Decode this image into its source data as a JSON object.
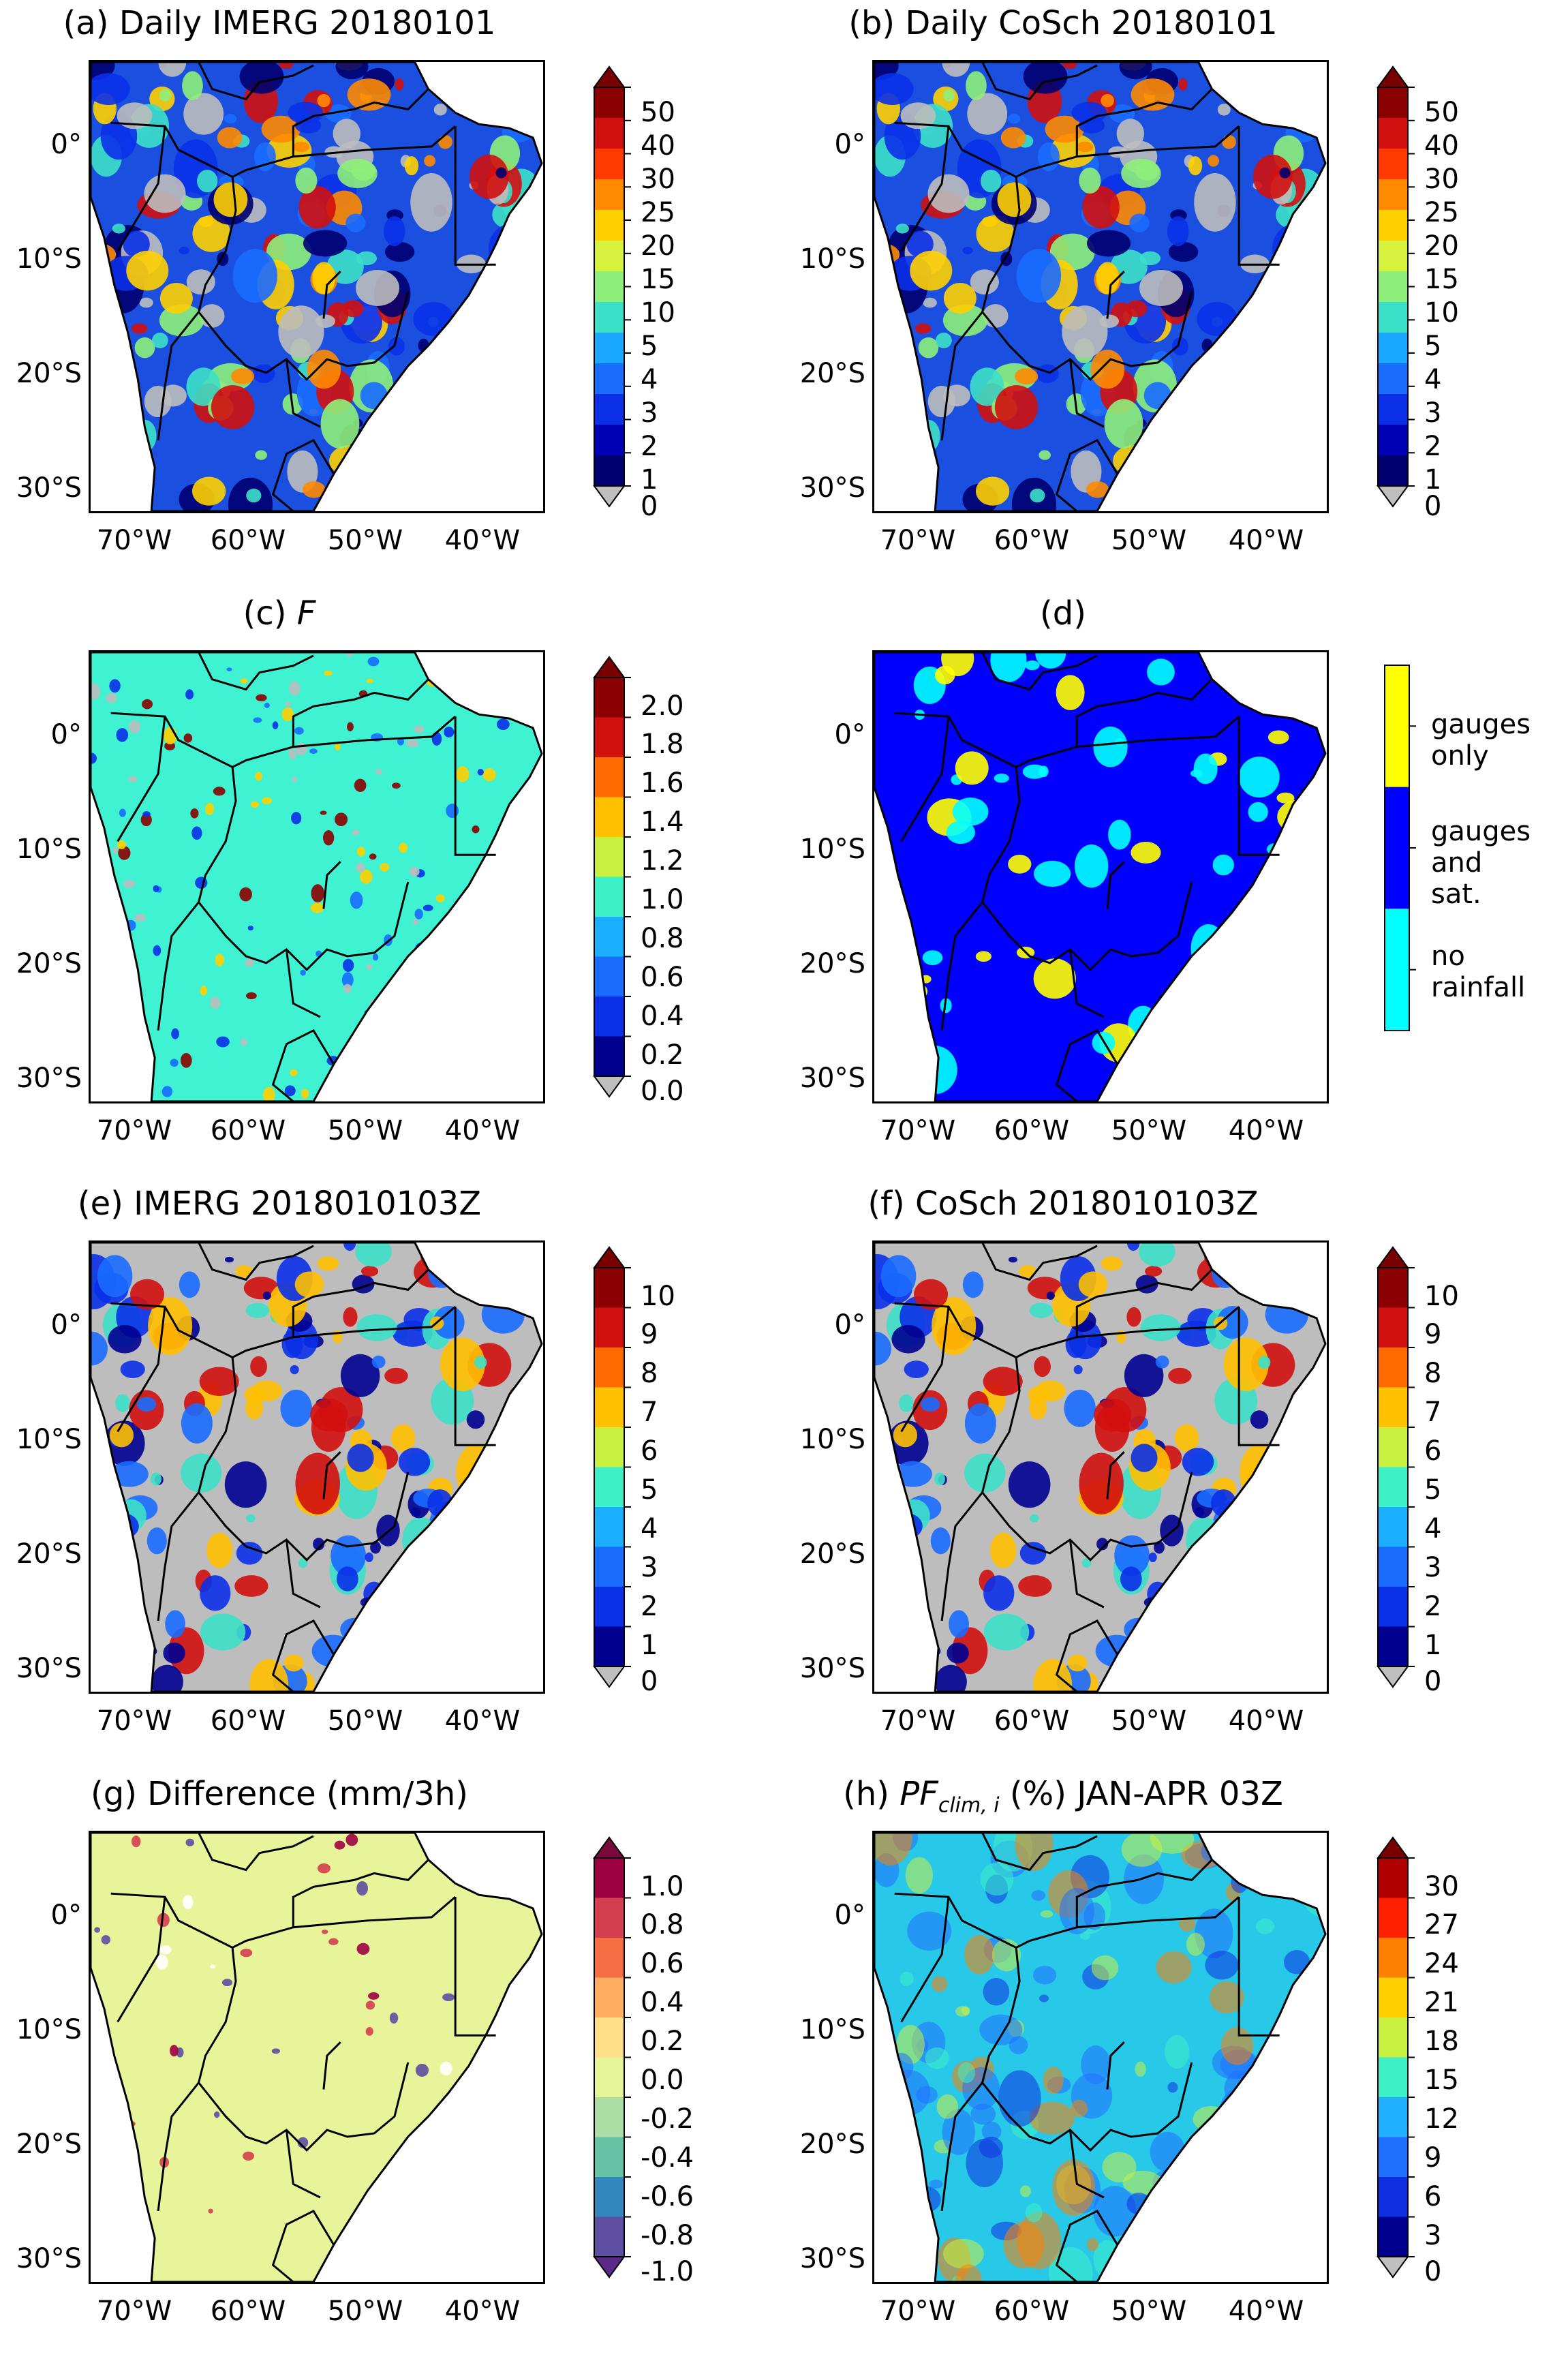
{
  "figure": {
    "lat_labels": [
      "0°",
      "10°S",
      "20°S",
      "30°S"
    ],
    "lon_labels": [
      "70°W",
      "60°W",
      "50°W",
      "40°W"
    ]
  },
  "panels": [
    {
      "id": "a",
      "title": "(a) Daily IMERG 20180101",
      "colorbar": {
        "type": "continuous",
        "ticks": [
          "50",
          "40",
          "30",
          "25",
          "20",
          "15",
          "10",
          "5",
          "4",
          "3",
          "2",
          "1",
          "0"
        ],
        "colors": [
          "#8b0000",
          "#d11010",
          "#ff3a00",
          "#ff8a00",
          "#ffd000",
          "#d6f23c",
          "#8ef07a",
          "#3ce0c8",
          "#1aa8ff",
          "#1a6cff",
          "#0a30e8",
          "#0000b4",
          "#000070"
        ],
        "extend_top": "#7a0000",
        "extend_bottom": "#bfbfbf"
      },
      "map": {
        "background": "#1a4fe0",
        "style": "daily"
      }
    },
    {
      "id": "b",
      "title": "(b) Daily CoSch 20180101",
      "colorbar": {
        "type": "continuous",
        "ticks": [
          "50",
          "40",
          "30",
          "25",
          "20",
          "15",
          "10",
          "5",
          "4",
          "3",
          "2",
          "1",
          "0"
        ],
        "colors": [
          "#8b0000",
          "#d11010",
          "#ff3a00",
          "#ff8a00",
          "#ffd000",
          "#d6f23c",
          "#8ef07a",
          "#3ce0c8",
          "#1aa8ff",
          "#1a6cff",
          "#0a30e8",
          "#0000b4",
          "#000070"
        ],
        "extend_top": "#7a0000",
        "extend_bottom": "#bfbfbf"
      },
      "map": {
        "background": "#1a4fe0",
        "style": "daily"
      }
    },
    {
      "id": "c",
      "title_prefix": "(c) ",
      "title_italic": "F",
      "colorbar": {
        "type": "continuous",
        "ticks": [
          "2.0",
          "1.8",
          "1.6",
          "1.4",
          "1.2",
          "1.0",
          "0.8",
          "0.6",
          "0.4",
          "0.2",
          "0.0"
        ],
        "colors": [
          "#8b0000",
          "#d11010",
          "#ff6a00",
          "#ffc000",
          "#c8f040",
          "#3cf0c8",
          "#1ab0ff",
          "#1a6cff",
          "#0a30e8",
          "#000090"
        ],
        "extend_top": "#7a0000",
        "extend_bottom": "#bfbfbf"
      },
      "map": {
        "background": "#3ef2d2",
        "style": "factor"
      }
    },
    {
      "id": "d",
      "title": "(d)",
      "colorbar": {
        "type": "categorical",
        "categories": [
          {
            "label": "gauges\nonly",
            "color": "#ffff00"
          },
          {
            "label": "gauges\nand\nsat.",
            "color": "#0000ff"
          },
          {
            "label": "no\nrainfall",
            "color": "#00ffff"
          }
        ]
      },
      "map": {
        "background": "#0000ff",
        "style": "category"
      }
    },
    {
      "id": "e",
      "title": "(e) IMERG 2018010103Z",
      "colorbar": {
        "type": "continuous",
        "ticks": [
          "10",
          "9",
          "8",
          "7",
          "6",
          "5",
          "4",
          "3",
          "2",
          "1",
          "0"
        ],
        "colors": [
          "#8b0000",
          "#d11010",
          "#ff6a00",
          "#ffc000",
          "#c8f040",
          "#3cf0c8",
          "#1ab0ff",
          "#1a6cff",
          "#0a30e8",
          "#000090"
        ],
        "extend_top": "#7a0000",
        "extend_bottom": "#bfbfbf"
      },
      "map": {
        "background": "#bdbdbd",
        "style": "hourly"
      }
    },
    {
      "id": "f",
      "title": "(f) CoSch 2018010103Z",
      "colorbar": {
        "type": "continuous",
        "ticks": [
          "10",
          "9",
          "8",
          "7",
          "6",
          "5",
          "4",
          "3",
          "2",
          "1",
          "0"
        ],
        "colors": [
          "#8b0000",
          "#d11010",
          "#ff6a00",
          "#ffc000",
          "#c8f040",
          "#3cf0c8",
          "#1ab0ff",
          "#1a6cff",
          "#0a30e8",
          "#000090"
        ],
        "extend_top": "#7a0000",
        "extend_bottom": "#bfbfbf"
      },
      "map": {
        "background": "#bdbdbd",
        "style": "hourly"
      }
    },
    {
      "id": "g",
      "title": "(g) Difference (mm/3h)",
      "colorbar": {
        "type": "continuous",
        "ticks": [
          "1.0",
          "0.8",
          "0.6",
          "0.4",
          "0.2",
          "0.0",
          "-0.2",
          "-0.4",
          "-0.6",
          "-0.8",
          "-1.0"
        ],
        "colors": [
          "#9e0142",
          "#d53e4f",
          "#f46d43",
          "#fdae61",
          "#fee08b",
          "#e6f598",
          "#abdda4",
          "#66c2a5",
          "#3288bd",
          "#5e4fa2"
        ],
        "extend_top": "#7b0a3c",
        "extend_bottom": "#5a2a8a"
      },
      "map": {
        "background": "#e8f49a",
        "style": "difference"
      }
    },
    {
      "id": "h",
      "title_italic": "PF",
      "title_sub": "clim, i",
      "title_suffix": " (%) JAN-APR 03Z",
      "title_prefix": "(h) ",
      "colorbar": {
        "type": "continuous",
        "ticks": [
          "30",
          "27",
          "24",
          "21",
          "18",
          "15",
          "12",
          "9",
          "6",
          "3",
          "0"
        ],
        "colors": [
          "#b00000",
          "#ff2000",
          "#ff8000",
          "#ffd000",
          "#c8f040",
          "#3cf0c8",
          "#20b0ff",
          "#2070ff",
          "#1030e0",
          "#000090"
        ],
        "extend_top": "#7a0000",
        "extend_bottom": "#bfbfbf"
      },
      "map": {
        "background": "#28c8e8",
        "style": "climatology"
      }
    }
  ]
}
